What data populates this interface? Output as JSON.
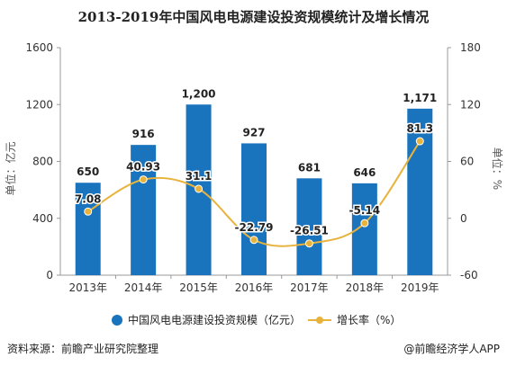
{
  "chart_data": {
    "type": "bar",
    "title": "2013-2019年中国风电电源建设投资规模统计及增长情况",
    "categories": [
      "2013年",
      "2014年",
      "2015年",
      "2016年",
      "2017年",
      "2018年",
      "2019年"
    ],
    "series": [
      {
        "name": "中国风电电源建设投资规模（亿元）",
        "type": "bar",
        "axis": "left",
        "values": [
          650,
          916,
          1200,
          927,
          681,
          646,
          1171
        ],
        "labels": [
          "650",
          "916",
          "1,200",
          "927",
          "681",
          "646",
          "1,171"
        ]
      },
      {
        "name": "增长率（%）",
        "type": "line",
        "axis": "right",
        "values": [
          7.08,
          40.93,
          31.1,
          -22.79,
          -26.51,
          -5.14,
          81.3
        ],
        "labels": [
          "7.08",
          "40.93",
          "31.1",
          "-22.79",
          "-26.51",
          "-5.14",
          "81.3"
        ]
      }
    ],
    "ylabel_left": "单位：亿元",
    "ylabel_right": "单位：%",
    "ylim_left": [
      0,
      1600
    ],
    "yticks_left": [
      "0",
      "400",
      "800",
      "1200",
      "1600"
    ],
    "ylim_right": [
      -60,
      180
    ],
    "yticks_right": [
      "-60",
      "0",
      "60",
      "120",
      "180"
    ],
    "grid": false,
    "legend": "bottom-center",
    "colors": {
      "bar": "#1a74bd",
      "line": "#e8b33c"
    }
  },
  "footer": {
    "source": "资料来源：前瞻产业研究院整理",
    "brand": "@前瞻经济学人APP"
  }
}
